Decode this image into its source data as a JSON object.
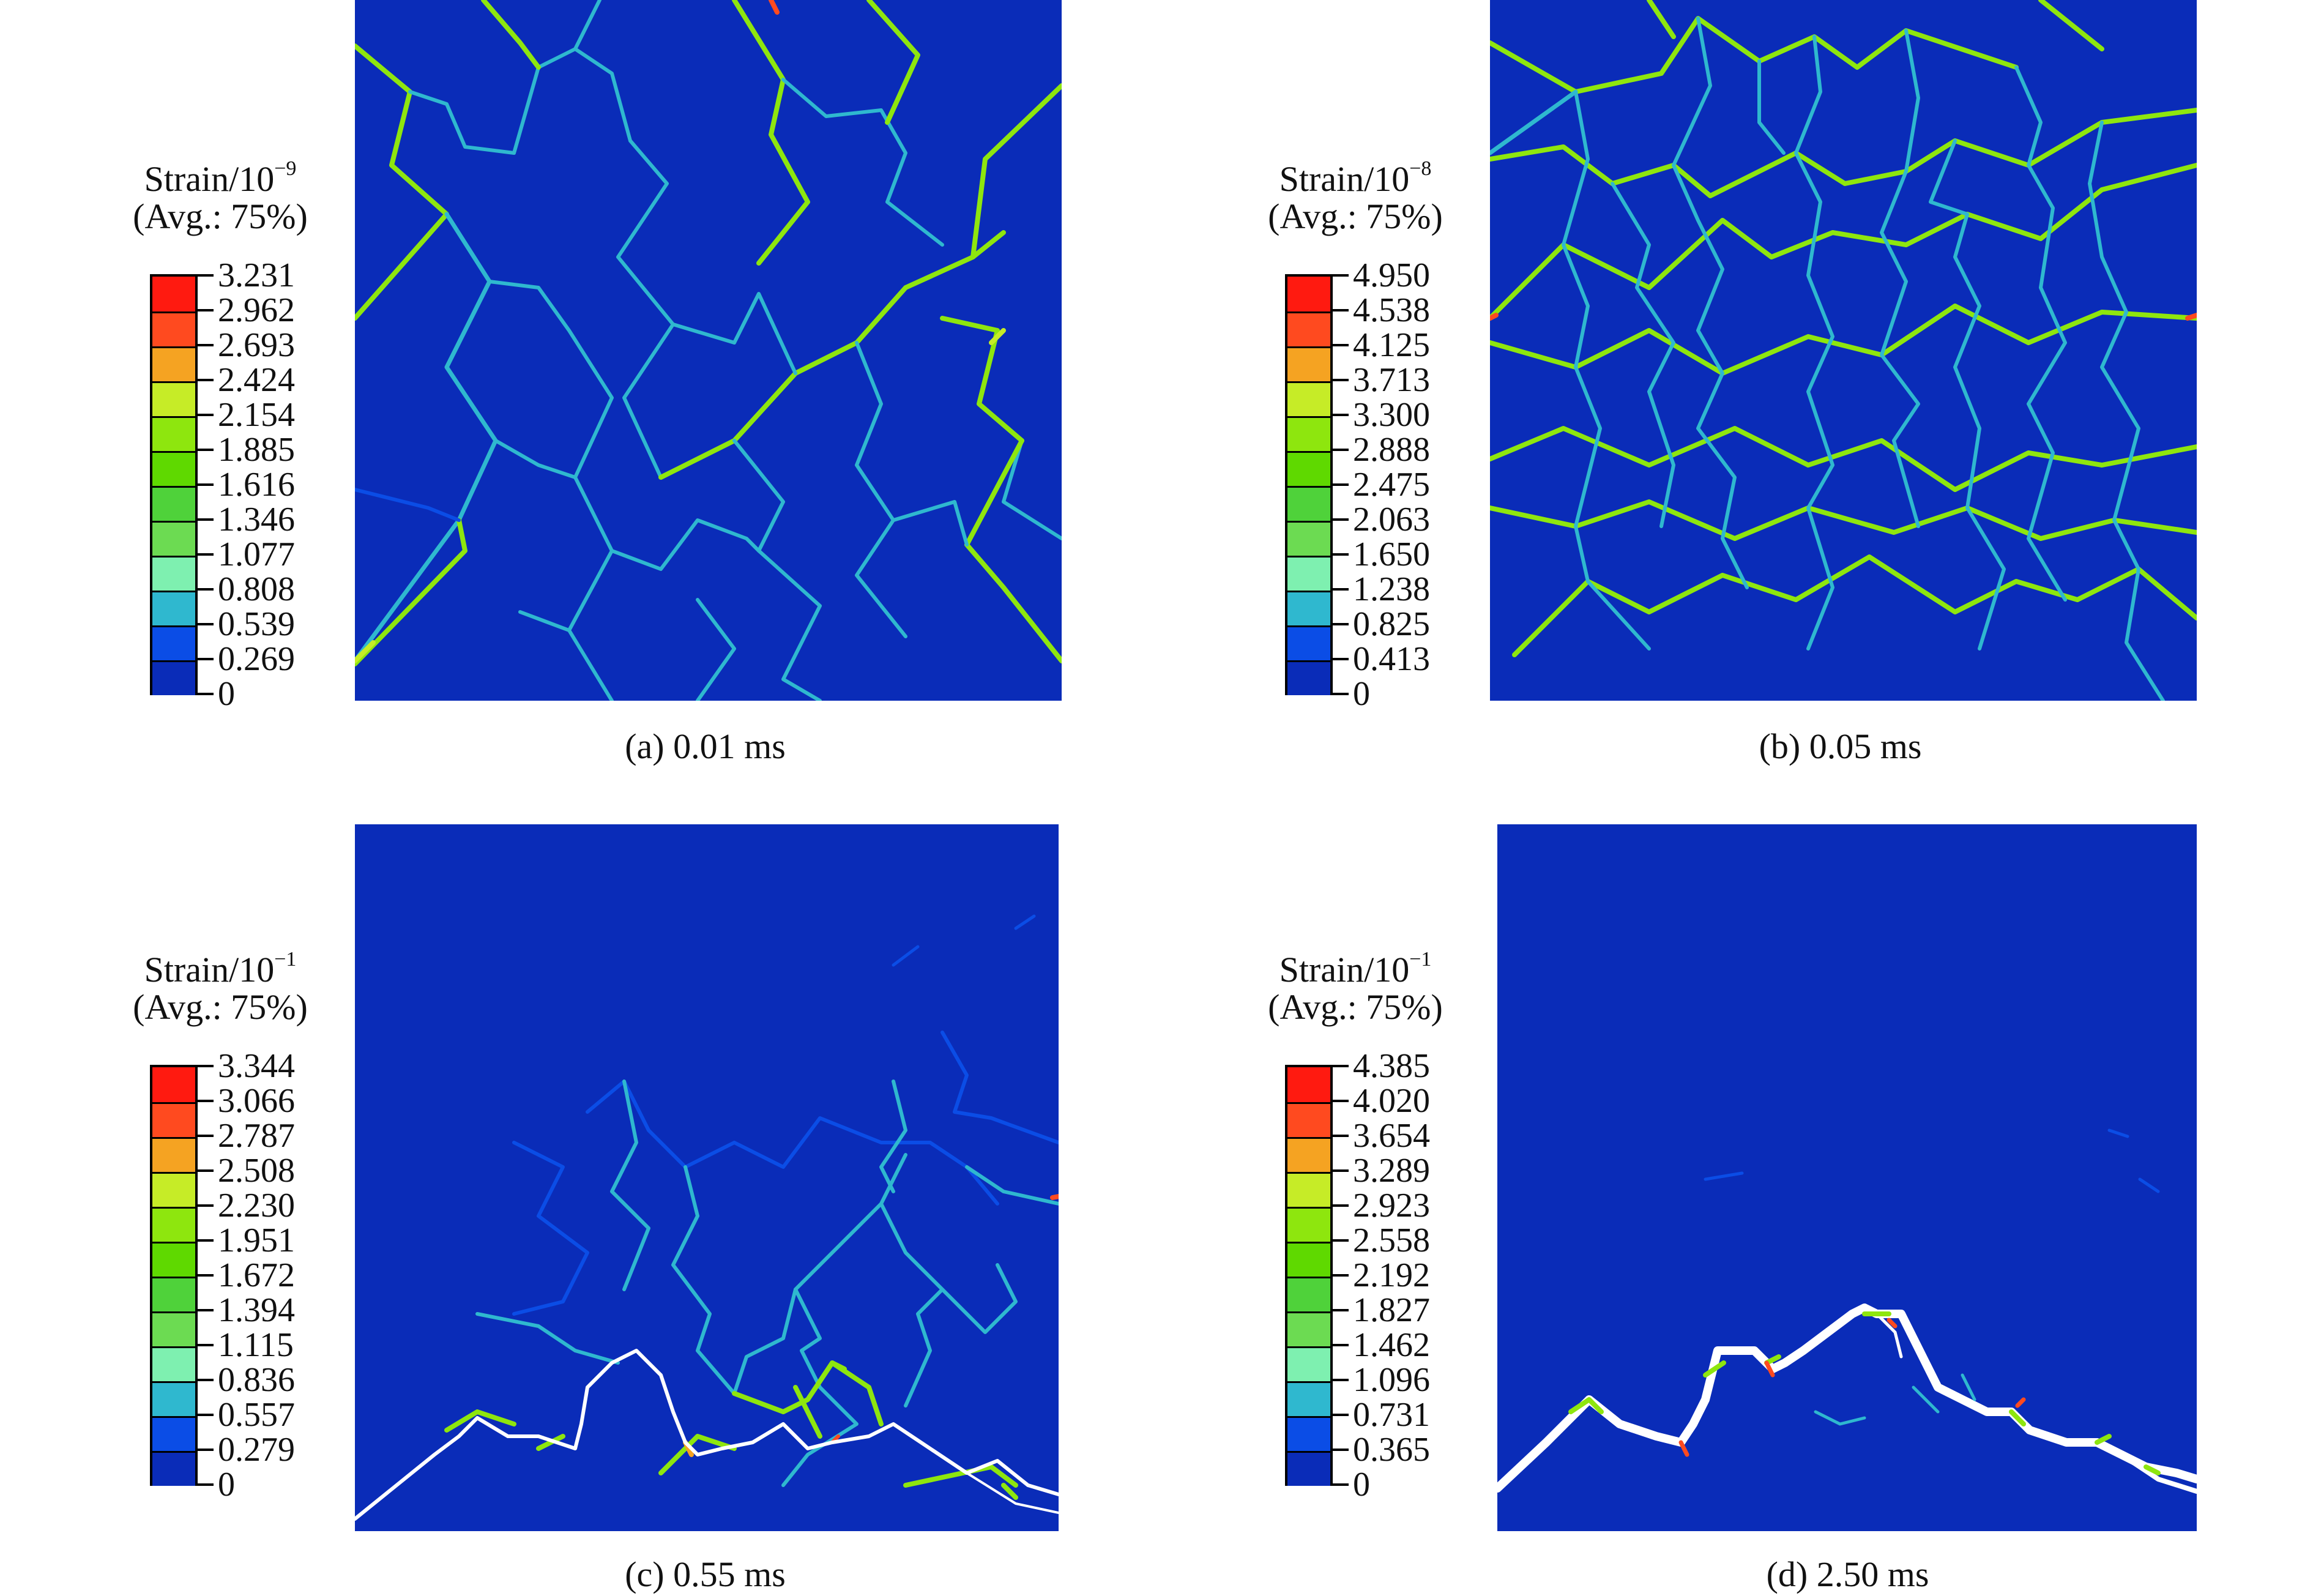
{
  "colors": {
    "background": "#0a2cb8",
    "scale": [
      "#0a2cb8",
      "#0b4de6",
      "#2fb8cf",
      "#7ef0b0",
      "#6cdb52",
      "#4fd23a",
      "#5fd900",
      "#8ee60e",
      "#c6ec27",
      "#f5a322",
      "#ff4a1f",
      "#ff1a10"
    ],
    "crack": "#ffffff"
  },
  "panels": [
    {
      "legend": {
        "title_base": "Strain/10",
        "title_exp": "−9",
        "subtitle": "(Avg.: 75%)",
        "ticks": [
          "3.231",
          "2.962",
          "2.693",
          "2.424",
          "2.154",
          "1.885",
          "1.616",
          "1.346",
          "1.077",
          "0.808",
          "0.539",
          "0.269",
          "0"
        ]
      },
      "caption": "(a) 0.01 ms",
      "figure": {
        "time_ms": 0.01,
        "cracked": false
      }
    },
    {
      "legend": {
        "title_base": "Strain/10",
        "title_exp": "−8",
        "subtitle": "(Avg.: 75%)",
        "ticks": [
          "4.950",
          "4.538",
          "4.125",
          "3.713",
          "3.300",
          "2.888",
          "2.475",
          "2.063",
          "1.650",
          "1.238",
          "0.825",
          "0.413",
          "0"
        ]
      },
      "caption": "(b) 0.05 ms",
      "figure": {
        "time_ms": 0.05,
        "cracked": false
      }
    },
    {
      "legend": {
        "title_base": "Strain/10",
        "title_exp": "−1",
        "subtitle": "(Avg.: 75%)",
        "ticks": [
          "3.344",
          "3.066",
          "2.787",
          "2.508",
          "2.230",
          "1.951",
          "1.672",
          "1.394",
          "1.115",
          "0.836",
          "0.557",
          "0.279",
          "0"
        ]
      },
      "caption": "(c) 0.55 ms",
      "figure": {
        "time_ms": 0.55,
        "cracked": true
      }
    },
    {
      "legend": {
        "title_base": "Strain/10",
        "title_exp": "−1",
        "subtitle": "(Avg.: 75%)",
        "ticks": [
          "4.385",
          "4.020",
          "3.654",
          "3.289",
          "2.923",
          "2.558",
          "2.192",
          "1.827",
          "1.462",
          "1.096",
          "0.731",
          "0.365",
          "0"
        ]
      },
      "caption": "(d) 2.50 ms",
      "figure": {
        "time_ms": 2.5,
        "cracked": true
      }
    }
  ]
}
